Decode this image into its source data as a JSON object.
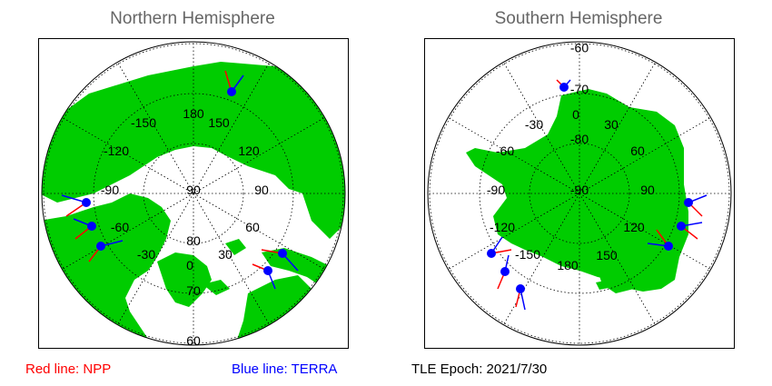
{
  "north": {
    "title": "Northern Hemisphere",
    "lon_labels": [
      "180",
      "150",
      "120",
      "90",
      "60",
      "30",
      "0",
      "-30",
      "-60",
      "-90",
      "-120",
      "-150"
    ],
    "lat_labels": [
      "90",
      "80",
      "70",
      "60"
    ]
  },
  "south": {
    "title": "Southern Hemisphere",
    "lon_labels": [
      "0",
      "30",
      "60",
      "90",
      "120",
      "150",
      "180",
      "-150",
      "-120",
      "-90",
      "-60",
      "-30"
    ],
    "lat_labels": [
      "-90",
      "-80",
      "-70",
      "-60"
    ]
  },
  "legend": {
    "npp_label": "Red line: NPP",
    "terra_label": "Blue line: TERRA",
    "epoch_label": "TLE Epoch: 2021/7/30",
    "npp_color": "#ff0000",
    "terra_color": "#0000ff"
  },
  "colors": {
    "land": "#00cc00",
    "ocean": "#ffffff",
    "marker": "#0000ff"
  }
}
